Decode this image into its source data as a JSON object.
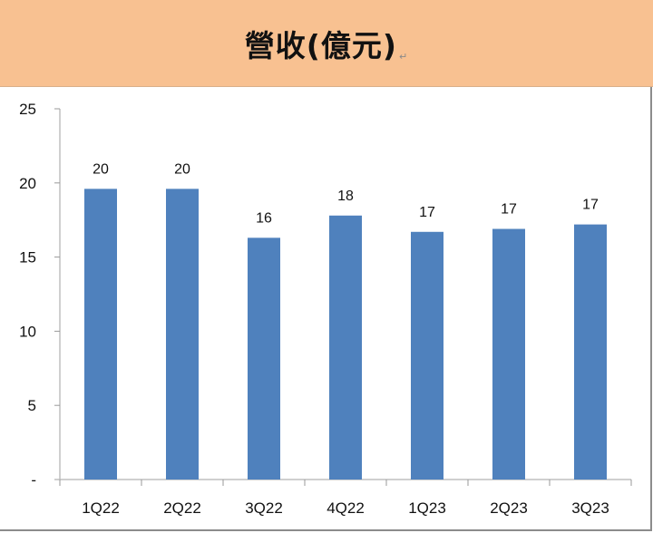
{
  "header": {
    "title": "營收(億元)",
    "return_mark": "↵",
    "background_color": "#F8C191"
  },
  "chart_data": {
    "type": "bar",
    "title": "營收(億元)",
    "xlabel": "",
    "ylabel": "",
    "categories": [
      "1Q22",
      "2Q22",
      "3Q22",
      "4Q22",
      "1Q23",
      "2Q23",
      "3Q23"
    ],
    "values": [
      19.6,
      19.6,
      16.3,
      17.8,
      16.7,
      16.9,
      17.2
    ],
    "data_labels": [
      "20",
      "20",
      "16",
      "18",
      "17",
      "17",
      "17"
    ],
    "ylim": [
      0,
      25
    ],
    "yticks": [
      0,
      5,
      10,
      15,
      20,
      25
    ],
    "ytick_labels": [
      "-",
      "5",
      "10",
      "15",
      "20",
      "25"
    ],
    "grid": false,
    "legend": null,
    "bar_color": "#4F81BD"
  }
}
